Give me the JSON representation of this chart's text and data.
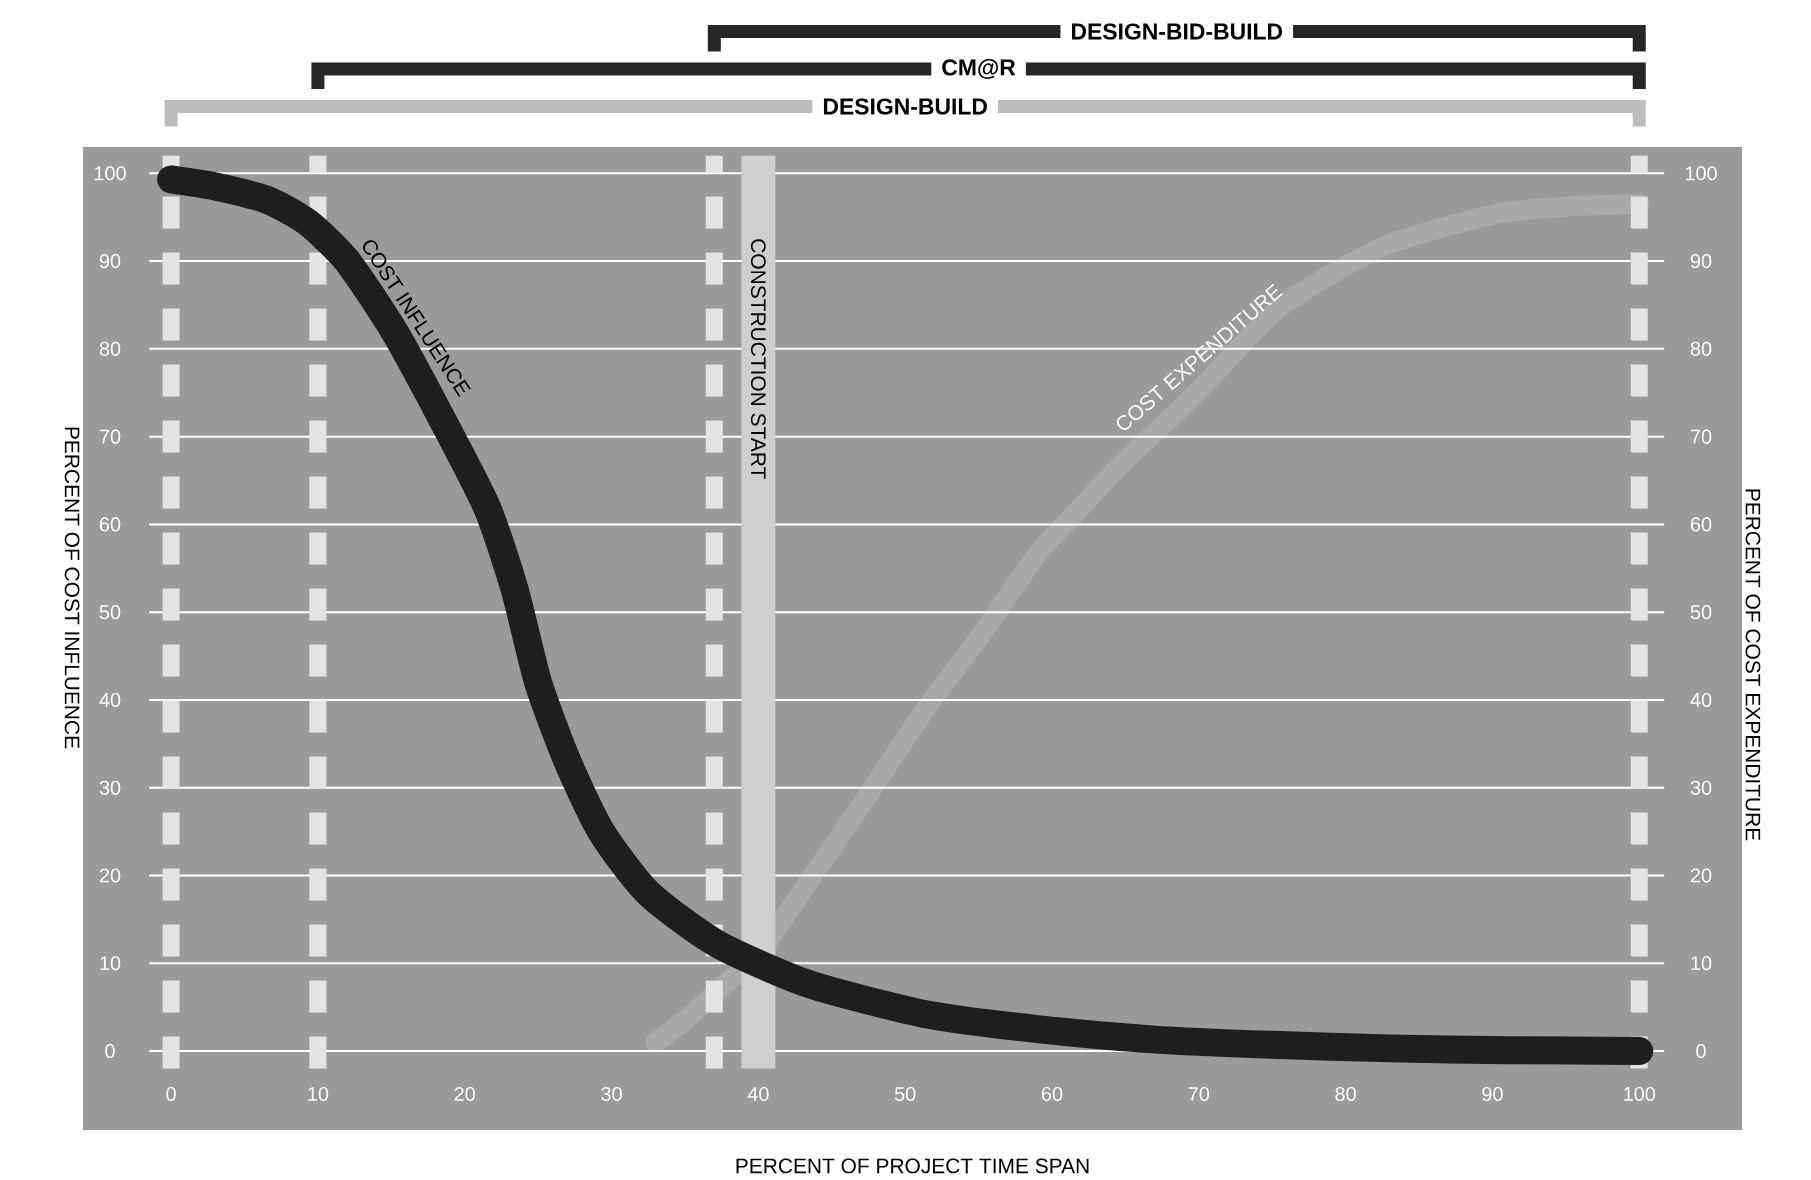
{
  "chart_data": {
    "type": "line",
    "xlabel": "PERCENT OF PROJECT TIME SPAN",
    "ylabel": "PERCENT OF COST INFLUENCE",
    "y2label": "PERCENT OF COST EXPENDITURE",
    "xlim": [
      -6,
      107
    ],
    "ylim": [
      -9,
      103
    ],
    "y2lim": [
      -9,
      103
    ],
    "xticks": [
      0,
      10,
      20,
      30,
      40,
      50,
      60,
      70,
      80,
      90,
      100
    ],
    "yticks": [
      0,
      10,
      20,
      30,
      40,
      50,
      60,
      70,
      80,
      90,
      100
    ],
    "y2ticks": [
      0,
      10,
      20,
      30,
      40,
      50,
      60,
      70,
      80,
      90,
      100
    ],
    "grid": "y",
    "series": [
      {
        "name": "COST INFLUENCE",
        "color": "#1e1e1e",
        "x": [
          0,
          3,
          6.5,
          9.3,
          12,
          15.2,
          18.3,
          21.5,
          23.4,
          25,
          27,
          29.3,
          32.5,
          37.2,
          43.5,
          51.4,
          59,
          67,
          75,
          83,
          91,
          100
        ],
        "values": [
          99.3,
          98.5,
          97,
          94.4,
          90,
          82,
          72.5,
          62,
          52.6,
          42,
          33,
          25,
          18,
          12.2,
          7.6,
          4.2,
          2.5,
          1.3,
          0.7,
          0.3,
          0.1,
          0
        ]
      },
      {
        "name": "COST EXPENDITURE",
        "color": "#a9a9a9",
        "axis": "y2",
        "x": [
          33,
          35,
          38,
          40,
          43.5,
          47,
          51.4,
          55,
          59,
          62,
          64.8,
          68,
          71,
          75,
          79,
          82.8,
          87,
          90.7,
          95,
          100
        ],
        "values": [
          1,
          3.5,
          8,
          11,
          19.5,
          28,
          39,
          47,
          56.6,
          62,
          67,
          72,
          77,
          84,
          88.5,
          91.8,
          94,
          95.5,
          96.2,
          96.5
        ]
      }
    ],
    "ref_lines": [
      {
        "axis": "x",
        "value": 37,
        "color": "#e4e4e4",
        "line_style": "dashed"
      },
      {
        "axis": "x",
        "value": 10,
        "color": "#e4e4e4",
        "line_style": "dashed"
      },
      {
        "axis": "x",
        "value": 0,
        "color": "#e4e4e4",
        "line_style": "dashed"
      },
      {
        "axis": "x",
        "value": 100,
        "color": "#e4e4e4",
        "line_style": "dashed"
      },
      {
        "axis": "x",
        "value": 40,
        "label": "CONSTRUCTION START",
        "color": "#cfcfcf"
      }
    ],
    "annotations": [
      "DESIGN-BID-BUILD",
      "CM@R",
      "DESIGN-BUILD"
    ]
  }
}
